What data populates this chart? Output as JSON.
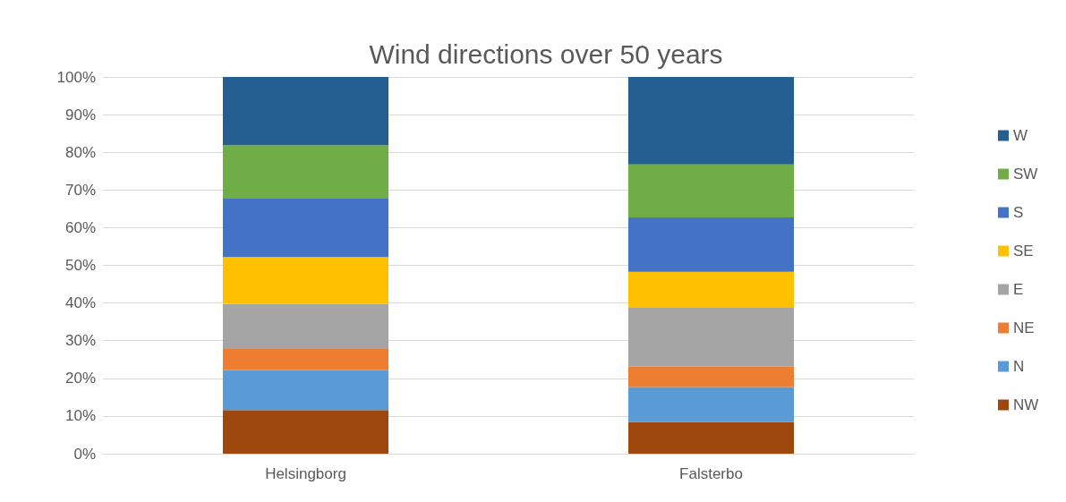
{
  "chart_data": {
    "type": "bar",
    "title": "Wind directions over 50 years",
    "stacked": true,
    "categories": [
      "Helsingborg",
      "Falsterbo"
    ],
    "series": [
      {
        "name": "NW",
        "color": "#9e480e",
        "values": [
          11.6,
          8.4
        ]
      },
      {
        "name": "N",
        "color": "#5b9bd5",
        "values": [
          10.6,
          9.3
        ]
      },
      {
        "name": "NE",
        "color": "#ed7d31",
        "values": [
          5.6,
          5.4
        ]
      },
      {
        "name": "E",
        "color": "#a5a5a5",
        "values": [
          12.0,
          15.8
        ]
      },
      {
        "name": "SE",
        "color": "#ffc000",
        "values": [
          12.4,
          9.4
        ]
      },
      {
        "name": "S",
        "color": "#4472c4",
        "values": [
          15.5,
          14.4
        ]
      },
      {
        "name": "SW",
        "color": "#70ad47",
        "values": [
          14.2,
          14.1
        ]
      },
      {
        "name": "W",
        "color": "#255e91",
        "values": [
          18.1,
          23.2
        ]
      }
    ],
    "ylim": [
      0,
      100
    ],
    "yticks": [
      {
        "value": 0,
        "label": "0%"
      },
      {
        "value": 10,
        "label": "10%"
      },
      {
        "value": 20,
        "label": "20%"
      },
      {
        "value": 30,
        "label": "30%"
      },
      {
        "value": 40,
        "label": "40%"
      },
      {
        "value": 50,
        "label": "50%"
      },
      {
        "value": 60,
        "label": "60%"
      },
      {
        "value": 70,
        "label": "70%"
      },
      {
        "value": 80,
        "label": "80%"
      },
      {
        "value": 90,
        "label": "90%"
      },
      {
        "value": 100,
        "label": "100%"
      }
    ],
    "grid": "y",
    "legend": "right"
  }
}
